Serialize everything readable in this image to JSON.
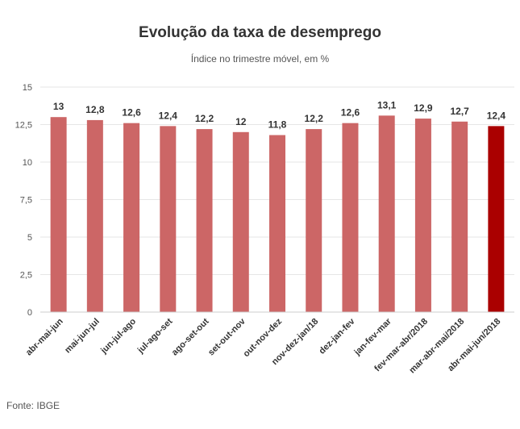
{
  "chart_data": {
    "type": "bar",
    "title": "Evolução da taxa de desemprego",
    "subtitle": "Índice no trimestre móvel, em %",
    "categories": [
      "abr-mai-jun",
      "mai-jun-jul",
      "jun-jul-ago",
      "jul-ago-set",
      "ago-set-out",
      "set-out-nov",
      "out-nov-dez",
      "nov-dez-jan/18",
      "dez-jan-fev",
      "jan-fev-mar",
      "fev-mar-abr/2018",
      "mar-abr-mai/2018",
      "abr-mai-jun/2018"
    ],
    "values": [
      13,
      12.8,
      12.6,
      12.4,
      12.2,
      12,
      11.8,
      12.2,
      12.6,
      13.1,
      12.9,
      12.7,
      12.4
    ],
    "data_labels": [
      "13",
      "12,8",
      "12,6",
      "12,4",
      "12,2",
      "12",
      "11,8",
      "12,2",
      "12,6",
      "13,1",
      "12,9",
      "12,7",
      "12,4"
    ],
    "y_ticks": [
      0,
      2.5,
      5,
      7.5,
      10,
      12.5,
      15
    ],
    "y_tick_labels": [
      "0",
      "2,5",
      "5",
      "7,5",
      "10",
      "12,5",
      "15"
    ],
    "ylim": [
      0,
      15
    ],
    "grid": true,
    "bar_color": "#cc6666",
    "highlight_color": "#aa0000",
    "highlight_index": 12
  },
  "source": "Fonte: IBGE"
}
